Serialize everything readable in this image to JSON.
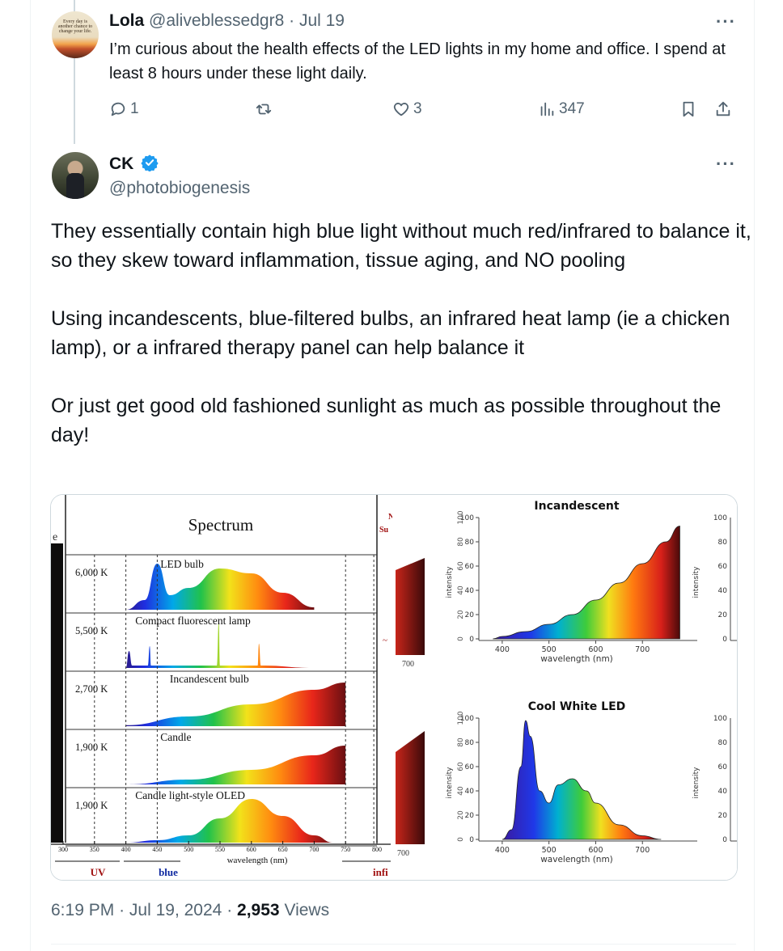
{
  "tweet1": {
    "avatar_motto": "Every day is another chance to change your life.",
    "name": "Lola",
    "handle": "@aliveblessedgr8",
    "sep": "·",
    "date": "Jul 19",
    "text": "I’m curious about the health effects of the LED lights in my home and office. I spend at least 8 hours under these light daily.",
    "replies": "1",
    "likes": "3",
    "views": "347"
  },
  "tweet2": {
    "name": "CK",
    "handle": "@photobiogenesis",
    "paragraphs": [
      "They essentially contain high blue light without much red/infrared to balance it, so they skew toward inflammation, tissue aging, and NO pooling",
      "Using incandescents, blue-filtered bulbs, an infrared heat lamp (ie a chicken lamp), or a infrared therapy panel can help balance it",
      "Or just get good old fashioned sunlight as much as possible throughout the day!"
    ],
    "time": "6:19 PM",
    "sep": "·",
    "date": "Jul 19, 2024",
    "views_count": "2,953",
    "views_label": "Views"
  },
  "more_label": "···",
  "colors": {
    "verified": "#1d9bf0",
    "muted": "#536471",
    "border": "#cfd9de"
  },
  "chart_data": [
    {
      "type": "area",
      "title": "Spectrum",
      "xlabel": "wavelength (nm)",
      "left_edge_label": "e",
      "x_ticks": [
        "300",
        "350",
        "400",
        "450",
        "500",
        "550",
        "600",
        "650",
        "700",
        "750",
        "800"
      ],
      "xlim": [
        300,
        800
      ],
      "band_labels": [
        "UV",
        "blue",
        "infi"
      ],
      "right_clip_label_1": "N",
      "right_clip_label_2": "Su",
      "right_clip_label_3": "~",
      "series": [
        {
          "name": "LED bulb",
          "temperature": "6,000 K",
          "x": [
            400,
            430,
            450,
            470,
            500,
            550,
            600,
            650,
            700
          ],
          "y": [
            0,
            0.2,
            0.95,
            0.3,
            0.45,
            0.85,
            0.75,
            0.35,
            0.05
          ]
        },
        {
          "name": "Compact fluorescent lamp",
          "temperature": "5,500 K",
          "x": [
            400,
            405,
            410,
            435,
            438,
            440,
            480,
            545,
            548,
            550,
            580,
            610,
            612,
            615,
            700
          ],
          "y": [
            0,
            0.35,
            0.05,
            0.05,
            0.45,
            0.05,
            0.05,
            0.05,
            0.95,
            0.05,
            0.05,
            0.05,
            0.5,
            0.05,
            0
          ]
        },
        {
          "name": "Incandescent bulb",
          "temperature": "2,700 K",
          "x": [
            400,
            500,
            600,
            700,
            750
          ],
          "y": [
            0.02,
            0.2,
            0.45,
            0.75,
            0.9
          ]
        },
        {
          "name": "Candle",
          "temperature": "1,900 K",
          "x": [
            400,
            500,
            600,
            700,
            750
          ],
          "y": [
            0,
            0.1,
            0.3,
            0.6,
            0.8
          ]
        },
        {
          "name": "Candle light-style OLED",
          "temperature": "1,900 K",
          "x": [
            400,
            450,
            500,
            550,
            600,
            650,
            700,
            730
          ],
          "y": [
            0,
            0.05,
            0.15,
            0.5,
            0.9,
            0.55,
            0.15,
            0
          ]
        }
      ]
    },
    {
      "type": "area",
      "title": "Incandescent",
      "xlabel": "wavelength (nm)",
      "ylabel": "intensity",
      "ylim": [
        0,
        100
      ],
      "y_ticks": [
        "0",
        "20",
        "40",
        "60",
        "80",
        "100"
      ],
      "x_ticks": [
        "400",
        "500",
        "600",
        "700"
      ],
      "left_clip_tick": "700",
      "x": [
        380,
        400,
        450,
        500,
        550,
        600,
        650,
        700,
        750,
        780
      ],
      "y": [
        0,
        2,
        6,
        12,
        20,
        32,
        46,
        62,
        80,
        93
      ]
    },
    {
      "type": "area",
      "title": "Cool White LED",
      "xlabel": "wavelength (nm)",
      "ylabel": "intensity",
      "ylim": [
        0,
        100
      ],
      "y_ticks": [
        "0",
        "20",
        "40",
        "60",
        "80",
        "100"
      ],
      "x_ticks": [
        "400",
        "500",
        "600",
        "700"
      ],
      "left_clip_tick": "700",
      "x": [
        400,
        420,
        440,
        450,
        460,
        480,
        500,
        520,
        550,
        580,
        600,
        650,
        700,
        740
      ],
      "y": [
        0,
        8,
        60,
        98,
        85,
        40,
        30,
        45,
        50,
        40,
        30,
        12,
        3,
        0
      ]
    }
  ]
}
